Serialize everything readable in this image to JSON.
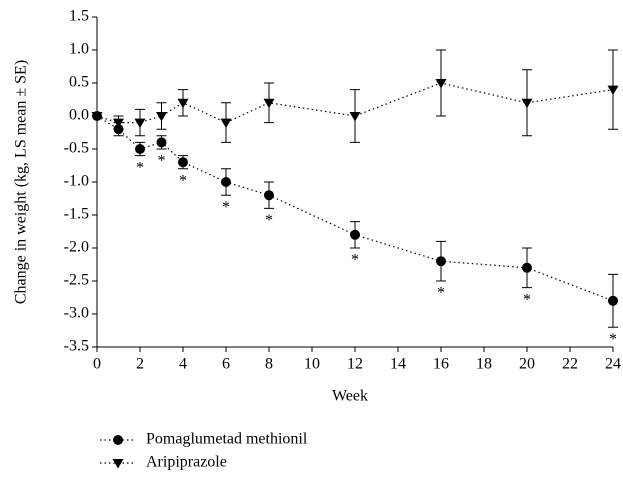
{
  "chart_data": {
    "type": "line",
    "x_label": "Week",
    "y_label": "Change in weight (kg, LS mean ± SE)",
    "xlim": [
      0,
      24
    ],
    "xticks": [
      0,
      2,
      4,
      6,
      8,
      10,
      12,
      14,
      16,
      18,
      20,
      22,
      24
    ],
    "ylim": [
      -3.5,
      1.5
    ],
    "yticks": [
      -3.5,
      {
        "value": -3,
        "label": "-3.0"
      },
      -2.5,
      {
        "value": -2,
        "label": "-2.0"
      },
      -1.5,
      {
        "value": -1,
        "label": "-1.0"
      },
      -0.5,
      {
        "value": 0,
        "label": "0.0"
      },
      0.5,
      {
        "value": 1,
        "label": "1.0"
      },
      1.5
    ],
    "legend": "bottom-left",
    "series": [
      {
        "name": "Pomaglumetad methionil",
        "color": "#000000",
        "marker": "circle",
        "x": [
          0,
          1,
          2,
          3,
          4,
          6,
          8,
          12,
          16,
          20,
          24
        ],
        "values": [
          0,
          -0.2,
          -0.5,
          -0.4,
          -0.7,
          -1.0,
          -1.2,
          -1.8,
          -2.2,
          -2.3,
          -2.8
        ],
        "errors": [
          0,
          0.1,
          0.1,
          0.1,
          0.1,
          0.2,
          0.2,
          0.2,
          0.3,
          0.3,
          0.4
        ],
        "annotations": [
          null,
          null,
          "*",
          "*",
          "*",
          "*",
          "*",
          "*",
          "*",
          "*",
          "*"
        ]
      },
      {
        "name": "Aripiprazole",
        "color": "#000000",
        "marker": "triangle-down",
        "x": [
          0,
          1,
          2,
          3,
          4,
          6,
          8,
          12,
          16,
          20,
          24
        ],
        "values": [
          0,
          -0.1,
          -0.1,
          0,
          0.2,
          -0.1,
          0.2,
          0,
          0.5,
          0.2,
          0.4
        ],
        "errors": [
          0,
          0.1,
          0.2,
          0.2,
          0.2,
          0.3,
          0.3,
          0.4,
          0.5,
          0.5,
          0.6
        ]
      }
    ]
  }
}
